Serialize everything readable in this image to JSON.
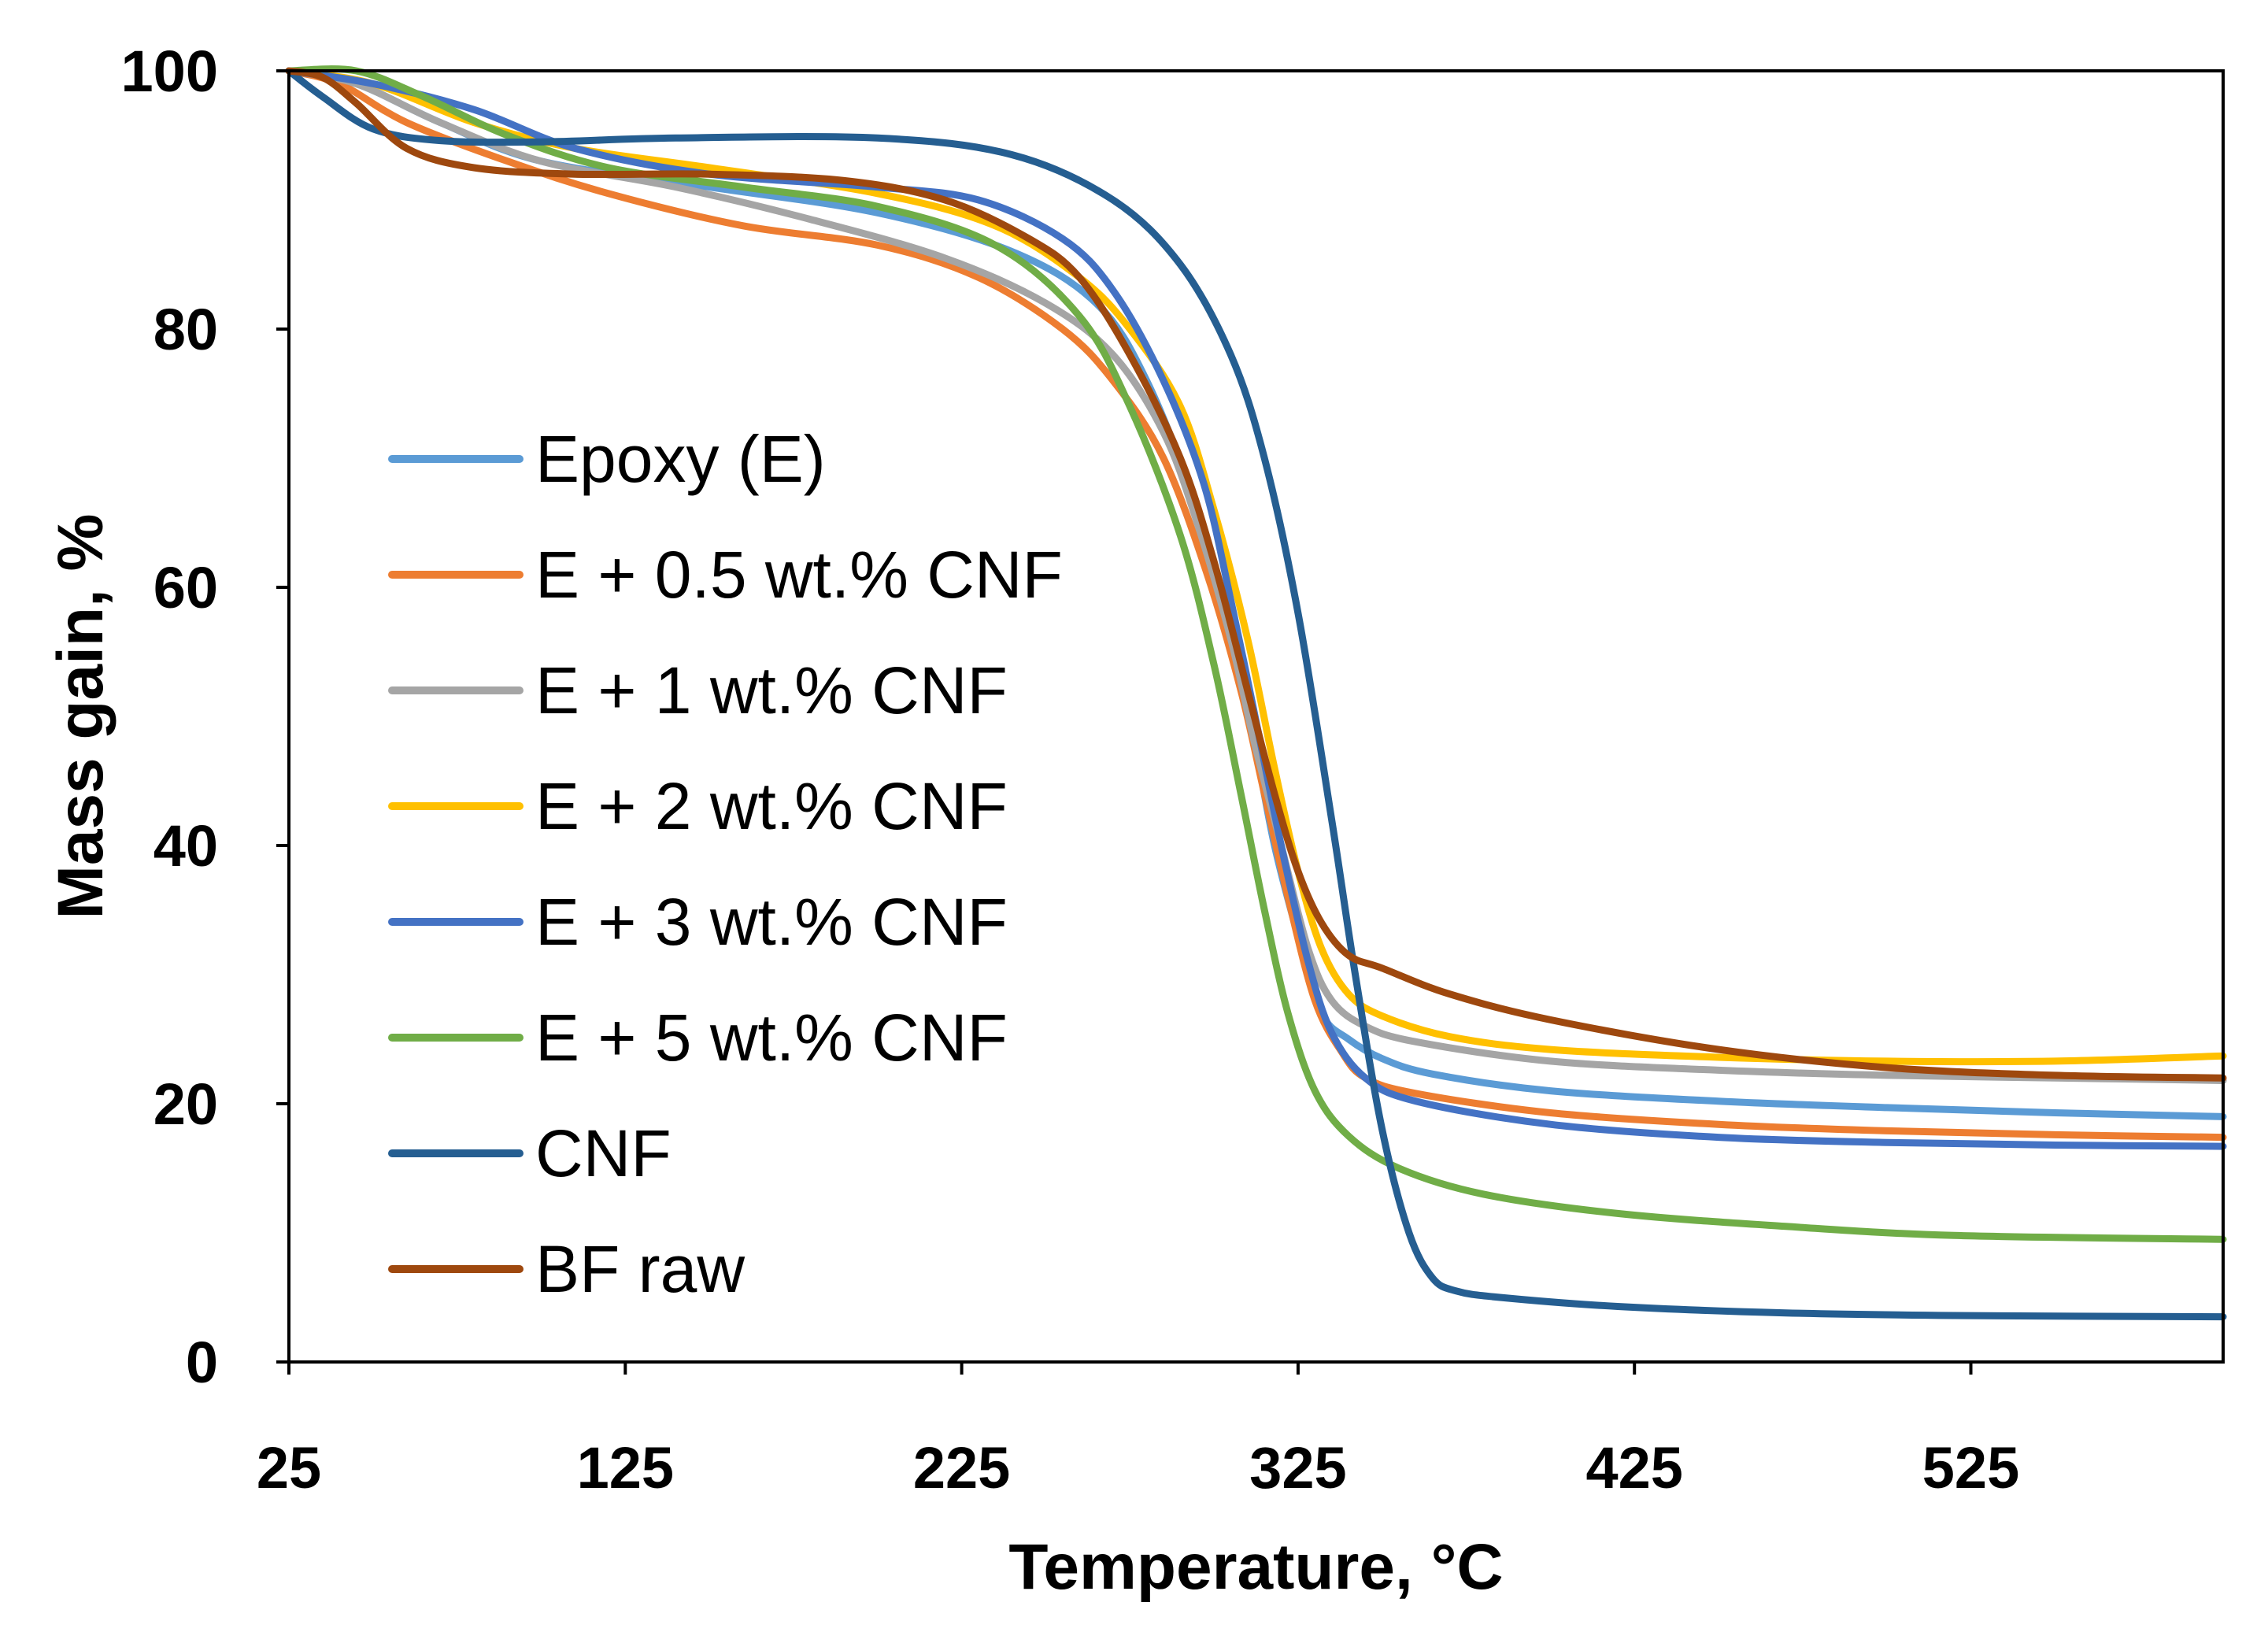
{
  "chart_data": {
    "type": "line",
    "title": "",
    "xlabel": "Temperature, °C",
    "ylabel": "Mass gain, %",
    "xlim": [
      25,
      600
    ],
    "ylim": [
      0,
      100
    ],
    "x_ticks": [
      25,
      125,
      225,
      325,
      425,
      525
    ],
    "y_ticks": [
      0,
      20,
      40,
      60,
      80,
      100
    ],
    "grid": false,
    "legend_position": "left-center",
    "series": [
      {
        "name": "Epoxy (E)",
        "color": "#5B9BD5",
        "x": [
          25,
          45,
          70,
          100,
          150,
          200,
          240,
          265,
          280,
          295,
          305,
          312,
          318,
          325,
          332,
          340,
          350,
          365,
          400,
          450,
          500,
          550,
          600
        ],
        "y": [
          100,
          99,
          96,
          93,
          91,
          89,
          86,
          82,
          76,
          66,
          56,
          48,
          40,
          33,
          27,
          25,
          23.5,
          22.3,
          21,
          20.2,
          19.7,
          19.3,
          19
        ]
      },
      {
        "name": "E + 0.5 wt.% CNF",
        "color": "#ED7D31",
        "x": [
          25,
          40,
          60,
          90,
          120,
          160,
          200,
          230,
          255,
          270,
          285,
          298,
          308,
          315,
          322,
          330,
          338,
          345,
          360,
          400,
          450,
          500,
          550,
          600
        ],
        "y": [
          100,
          99,
          96,
          93,
          90.5,
          88,
          86.5,
          84,
          80,
          76,
          70,
          61,
          52,
          44,
          36,
          28,
          24,
          22,
          20.8,
          19.3,
          18.4,
          17.9,
          17.6,
          17.4
        ]
      },
      {
        "name": "E + 1 wt.% CNF",
        "color": "#A5A5A5",
        "x": [
          25,
          45,
          70,
          100,
          140,
          180,
          220,
          250,
          270,
          285,
          295,
          305,
          312,
          320,
          328,
          335,
          345,
          360,
          400,
          450,
          500,
          550,
          600
        ],
        "y": [
          100,
          99,
          96,
          93,
          91,
          88.5,
          85.5,
          82,
          78,
          72,
          65,
          56,
          48,
          40,
          32,
          28,
          26,
          24.8,
          23.3,
          22.6,
          22.2,
          22,
          21.8
        ]
      },
      {
        "name": "E + 2 wt.% CNF",
        "color": "#FFC000",
        "x": [
          25,
          50,
          80,
          110,
          150,
          200,
          235,
          260,
          275,
          290,
          300,
          310,
          318,
          325,
          332,
          340,
          350,
          370,
          400,
          450,
          500,
          550,
          600
        ],
        "y": [
          100,
          99,
          96,
          94,
          92.5,
          90.5,
          88,
          84,
          80,
          74,
          66,
          56,
          46,
          38,
          32,
          28.5,
          26.8,
          25.2,
          24.2,
          23.6,
          23.3,
          23.3,
          23.7
        ]
      },
      {
        "name": "E + 3 wt.% CNF",
        "color": "#4472C4",
        "x": [
          25,
          50,
          80,
          110,
          150,
          200,
          230,
          255,
          270,
          285,
          297,
          305,
          313,
          320,
          328,
          335,
          345,
          360,
          400,
          450,
          500,
          550,
          600
        ],
        "y": [
          100,
          99,
          97,
          94,
          92,
          91,
          90,
          87,
          83,
          76,
          68,
          59,
          49,
          40,
          31,
          25.5,
          22,
          20.2,
          18.4,
          17.4,
          17,
          16.8,
          16.7
        ]
      },
      {
        "name": "E + 5 wt.% CNF",
        "color": "#70AD47",
        "x": [
          25,
          45,
          65,
          90,
          120,
          160,
          200,
          235,
          260,
          275,
          290,
          300,
          308,
          315,
          322,
          330,
          340,
          355,
          380,
          420,
          470,
          520,
          600
        ],
        "y": [
          100,
          100,
          98,
          95,
          92.5,
          91,
          89.5,
          86.5,
          81,
          74,
          64,
          54,
          44,
          35,
          27,
          21,
          17.5,
          15,
          13,
          11.5,
          10.5,
          9.8,
          9.5
        ]
      },
      {
        "name": "CNF",
        "color": "#255E91",
        "x": [
          25,
          35,
          50,
          70,
          100,
          140,
          200,
          240,
          270,
          290,
          305,
          315,
          325,
          335,
          342,
          350,
          358,
          365,
          372,
          385,
          420,
          470,
          520,
          600
        ],
        "y": [
          100,
          98,
          95.5,
          94.6,
          94.5,
          94.8,
          94.8,
          93.5,
          90,
          85,
          78,
          70,
          58,
          42,
          30,
          18,
          10,
          6.5,
          5.5,
          5,
          4.3,
          3.8,
          3.6,
          3.5
        ]
      },
      {
        "name": "BF raw",
        "color": "#9E480E",
        "x": [
          25,
          35,
          45,
          60,
          80,
          110,
          150,
          190,
          220,
          245,
          260,
          275,
          290,
          300,
          310,
          318,
          325,
          332,
          340,
          350,
          370,
          400,
          450,
          500,
          550,
          600
        ],
        "y": [
          100,
          99.5,
          97.5,
          94,
          92.5,
          92,
          92,
          91.5,
          90,
          87,
          84,
          78,
          70,
          62,
          52,
          44,
          38,
          34,
          31.5,
          30.5,
          28.5,
          26.5,
          24.2,
          22.8,
          22.2,
          22
        ]
      }
    ]
  }
}
